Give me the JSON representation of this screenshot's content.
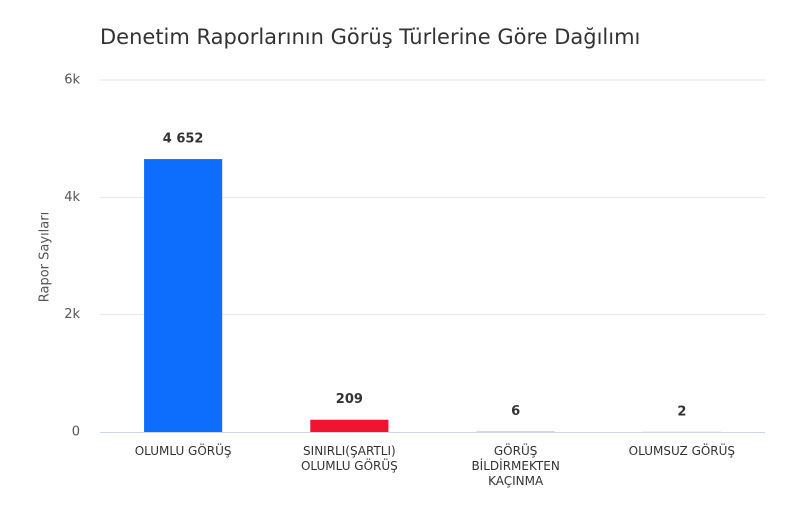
{
  "chart_data": {
    "type": "bar",
    "title": "Denetim Raporlarının Görüş Türlerine Göre Dağılımı",
    "y_label": "Rapor Sayıları",
    "categories": [
      "OLUMLU GÖRÜŞ",
      "SINIRLI(ŞARTLI) OLUMLU GÖRÜŞ",
      "GÖRÜŞ BİLDİRMEKTEN KAÇINMA",
      "OLUMSUZ GÖRÜŞ"
    ],
    "values": [
      4652,
      209,
      6,
      2
    ],
    "value_labels": [
      "4 652",
      "209",
      "6",
      "2"
    ],
    "colors": [
      "#0d6efd",
      "#f0142f",
      "#20c997",
      "#6c757d"
    ],
    "ylim": [
      0,
      6000
    ],
    "yticks": [
      0,
      {
        "value": 2000,
        "label": "2k"
      },
      {
        "value": 4000,
        "label": "4k"
      },
      {
        "value": 6000,
        "label": "6k"
      }
    ],
    "grid": true
  }
}
